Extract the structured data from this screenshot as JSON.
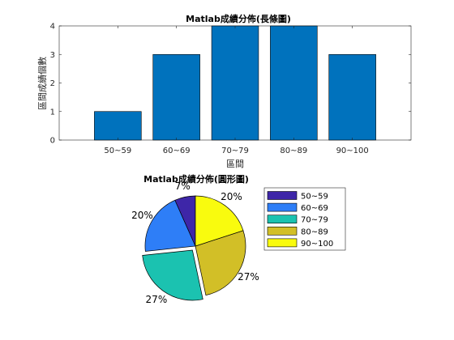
{
  "colors": {
    "bar": "#0072BD",
    "axis": "#262626",
    "edge": "#000000"
  },
  "chart_data": [
    {
      "type": "bar",
      "title": "Matlab成績分佈(長條圖)",
      "xlabel": "區間",
      "ylabel": "區間成績個數",
      "categories": [
        "50~59",
        "60~69",
        "70~79",
        "80~89",
        "90~100"
      ],
      "values": [
        1,
        3,
        4,
        4,
        3
      ],
      "ylim": [
        0,
        4
      ],
      "yticks": [
        "0",
        "1",
        "2",
        "3",
        "4"
      ],
      "grid": false
    },
    {
      "type": "pie",
      "title": "Matlab成績分佈(圓形圖)",
      "labels": [
        "50~59",
        "60~69",
        "70~79",
        "80~89",
        "90~100"
      ],
      "values": [
        1,
        3,
        4,
        4,
        3
      ],
      "percent_labels": [
        "7%",
        "20%",
        "27%",
        "27%",
        "20%"
      ],
      "colors": [
        "#3E26A8",
        "#2E7EF7",
        "#1BC2B0",
        "#D2BF27",
        "#F9FB0E"
      ],
      "exploded": [
        "70~79"
      ],
      "legend_position": "right"
    }
  ]
}
